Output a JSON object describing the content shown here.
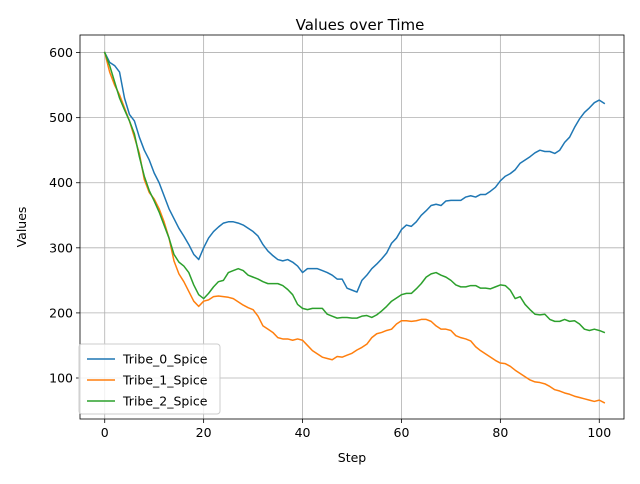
{
  "chart_data": {
    "type": "line",
    "title": "Values over Time",
    "xlabel": "Step",
    "ylabel": "Values",
    "xlim": [
      -5,
      105
    ],
    "ylim": [
      37,
      627
    ],
    "xticks": [
      0,
      20,
      40,
      60,
      80,
      100
    ],
    "yticks": [
      100,
      200,
      300,
      400,
      500,
      600
    ],
    "grid": true,
    "legend_position": "lower-left",
    "series": [
      {
        "name": "Tribe_0_Spice",
        "color": "#1f77b4",
        "points": [
          [
            0,
            600
          ],
          [
            1,
            585
          ],
          [
            2,
            580
          ],
          [
            3,
            570
          ],
          [
            4,
            530
          ],
          [
            5,
            505
          ],
          [
            6,
            495
          ],
          [
            7,
            470
          ],
          [
            8,
            450
          ],
          [
            9,
            435
          ],
          [
            10,
            415
          ],
          [
            11,
            400
          ],
          [
            12,
            380
          ],
          [
            13,
            360
          ],
          [
            14,
            345
          ],
          [
            15,
            330
          ],
          [
            16,
            318
          ],
          [
            17,
            305
          ],
          [
            18,
            290
          ],
          [
            19,
            282
          ],
          [
            20,
            300
          ],
          [
            21,
            315
          ],
          [
            22,
            325
          ],
          [
            23,
            332
          ],
          [
            24,
            338
          ],
          [
            25,
            340
          ],
          [
            26,
            340
          ],
          [
            27,
            338
          ],
          [
            28,
            335
          ],
          [
            29,
            330
          ],
          [
            30,
            325
          ],
          [
            31,
            318
          ],
          [
            32,
            305
          ],
          [
            33,
            295
          ],
          [
            34,
            288
          ],
          [
            35,
            282
          ],
          [
            36,
            280
          ],
          [
            37,
            282
          ],
          [
            38,
            278
          ],
          [
            39,
            272
          ],
          [
            40,
            262
          ],
          [
            41,
            268
          ],
          [
            42,
            268
          ],
          [
            43,
            268
          ],
          [
            44,
            265
          ],
          [
            45,
            262
          ],
          [
            46,
            258
          ],
          [
            47,
            252
          ],
          [
            48,
            252
          ],
          [
            49,
            238
          ],
          [
            50,
            235
          ],
          [
            51,
            232
          ],
          [
            52,
            250
          ],
          [
            53,
            258
          ],
          [
            54,
            268
          ],
          [
            55,
            275
          ],
          [
            56,
            283
          ],
          [
            57,
            292
          ],
          [
            58,
            307
          ],
          [
            59,
            315
          ],
          [
            60,
            328
          ],
          [
            61,
            335
          ],
          [
            62,
            333
          ],
          [
            63,
            340
          ],
          [
            64,
            350
          ],
          [
            65,
            357
          ],
          [
            66,
            365
          ],
          [
            67,
            367
          ],
          [
            68,
            365
          ],
          [
            69,
            372
          ],
          [
            70,
            373
          ],
          [
            71,
            373
          ],
          [
            72,
            373
          ],
          [
            73,
            378
          ],
          [
            74,
            380
          ],
          [
            75,
            378
          ],
          [
            76,
            382
          ],
          [
            77,
            382
          ],
          [
            78,
            387
          ],
          [
            79,
            393
          ],
          [
            80,
            403
          ],
          [
            81,
            410
          ],
          [
            82,
            414
          ],
          [
            83,
            420
          ],
          [
            84,
            430
          ],
          [
            85,
            435
          ],
          [
            86,
            440
          ],
          [
            87,
            446
          ],
          [
            88,
            450
          ],
          [
            89,
            448
          ],
          [
            90,
            448
          ],
          [
            91,
            445
          ],
          [
            92,
            450
          ],
          [
            93,
            462
          ],
          [
            94,
            470
          ],
          [
            95,
            485
          ],
          [
            96,
            498
          ],
          [
            97,
            508
          ],
          [
            98,
            515
          ],
          [
            99,
            523
          ],
          [
            100,
            527
          ],
          [
            101,
            522
          ]
        ]
      },
      {
        "name": "Tribe_1_Spice",
        "color": "#ff7f0e",
        "points": [
          [
            0,
            600
          ],
          [
            1,
            570
          ],
          [
            2,
            550
          ],
          [
            3,
            535
          ],
          [
            4,
            515
          ],
          [
            5,
            495
          ],
          [
            6,
            470
          ],
          [
            7,
            445
          ],
          [
            8,
            405
          ],
          [
            9,
            385
          ],
          [
            10,
            375
          ],
          [
            11,
            360
          ],
          [
            12,
            340
          ],
          [
            13,
            315
          ],
          [
            14,
            280
          ],
          [
            15,
            260
          ],
          [
            16,
            248
          ],
          [
            17,
            233
          ],
          [
            18,
            218
          ],
          [
            19,
            210
          ],
          [
            20,
            218
          ],
          [
            21,
            220
          ],
          [
            22,
            225
          ],
          [
            23,
            226
          ],
          [
            24,
            225
          ],
          [
            25,
            224
          ],
          [
            26,
            222
          ],
          [
            27,
            217
          ],
          [
            28,
            212
          ],
          [
            29,
            208
          ],
          [
            30,
            205
          ],
          [
            31,
            195
          ],
          [
            32,
            180
          ],
          [
            33,
            175
          ],
          [
            34,
            170
          ],
          [
            35,
            162
          ],
          [
            36,
            160
          ],
          [
            37,
            160
          ],
          [
            38,
            158
          ],
          [
            39,
            160
          ],
          [
            40,
            158
          ],
          [
            41,
            150
          ],
          [
            42,
            142
          ],
          [
            43,
            137
          ],
          [
            44,
            132
          ],
          [
            45,
            130
          ],
          [
            46,
            128
          ],
          [
            47,
            133
          ],
          [
            48,
            132
          ],
          [
            49,
            135
          ],
          [
            50,
            138
          ],
          [
            51,
            143
          ],
          [
            52,
            147
          ],
          [
            53,
            152
          ],
          [
            54,
            162
          ],
          [
            55,
            168
          ],
          [
            56,
            170
          ],
          [
            57,
            173
          ],
          [
            58,
            175
          ],
          [
            59,
            183
          ],
          [
            60,
            188
          ],
          [
            61,
            188
          ],
          [
            62,
            187
          ],
          [
            63,
            188
          ],
          [
            64,
            190
          ],
          [
            65,
            190
          ],
          [
            66,
            187
          ],
          [
            67,
            180
          ],
          [
            68,
            175
          ],
          [
            69,
            175
          ],
          [
            70,
            173
          ],
          [
            71,
            165
          ],
          [
            72,
            162
          ],
          [
            73,
            160
          ],
          [
            74,
            157
          ],
          [
            75,
            148
          ],
          [
            76,
            142
          ],
          [
            77,
            137
          ],
          [
            78,
            132
          ],
          [
            79,
            127
          ],
          [
            80,
            123
          ],
          [
            81,
            122
          ],
          [
            82,
            118
          ],
          [
            83,
            112
          ],
          [
            84,
            107
          ],
          [
            85,
            102
          ],
          [
            86,
            97
          ],
          [
            87,
            94
          ],
          [
            88,
            93
          ],
          [
            89,
            91
          ],
          [
            90,
            87
          ],
          [
            91,
            82
          ],
          [
            92,
            80
          ],
          [
            93,
            77
          ],
          [
            94,
            75
          ],
          [
            95,
            72
          ],
          [
            96,
            70
          ],
          [
            97,
            68
          ],
          [
            98,
            66
          ],
          [
            99,
            64
          ],
          [
            100,
            66
          ],
          [
            101,
            62
          ]
        ]
      },
      {
        "name": "Tribe_2_Spice",
        "color": "#2ca02c",
        "points": [
          [
            0,
            600
          ],
          [
            1,
            580
          ],
          [
            2,
            555
          ],
          [
            3,
            530
          ],
          [
            4,
            512
          ],
          [
            5,
            495
          ],
          [
            6,
            475
          ],
          [
            7,
            440
          ],
          [
            8,
            410
          ],
          [
            9,
            388
          ],
          [
            10,
            372
          ],
          [
            11,
            355
          ],
          [
            12,
            335
          ],
          [
            13,
            315
          ],
          [
            14,
            290
          ],
          [
            15,
            278
          ],
          [
            16,
            272
          ],
          [
            17,
            262
          ],
          [
            18,
            243
          ],
          [
            19,
            228
          ],
          [
            20,
            222
          ],
          [
            21,
            230
          ],
          [
            22,
            240
          ],
          [
            23,
            248
          ],
          [
            24,
            250
          ],
          [
            25,
            262
          ],
          [
            26,
            265
          ],
          [
            27,
            268
          ],
          [
            28,
            265
          ],
          [
            29,
            258
          ],
          [
            30,
            255
          ],
          [
            31,
            252
          ],
          [
            32,
            248
          ],
          [
            33,
            245
          ],
          [
            34,
            245
          ],
          [
            35,
            245
          ],
          [
            36,
            242
          ],
          [
            37,
            236
          ],
          [
            38,
            228
          ],
          [
            39,
            213
          ],
          [
            40,
            207
          ],
          [
            41,
            205
          ],
          [
            42,
            207
          ],
          [
            43,
            207
          ],
          [
            44,
            207
          ],
          [
            45,
            198
          ],
          [
            46,
            195
          ],
          [
            47,
            192
          ],
          [
            48,
            193
          ],
          [
            49,
            193
          ],
          [
            50,
            192
          ],
          [
            51,
            192
          ],
          [
            52,
            195
          ],
          [
            53,
            196
          ],
          [
            54,
            193
          ],
          [
            55,
            197
          ],
          [
            56,
            203
          ],
          [
            57,
            210
          ],
          [
            58,
            218
          ],
          [
            59,
            223
          ],
          [
            60,
            228
          ],
          [
            61,
            230
          ],
          [
            62,
            230
          ],
          [
            63,
            237
          ],
          [
            64,
            245
          ],
          [
            65,
            255
          ],
          [
            66,
            260
          ],
          [
            67,
            262
          ],
          [
            68,
            258
          ],
          [
            69,
            255
          ],
          [
            70,
            250
          ],
          [
            71,
            243
          ],
          [
            72,
            240
          ],
          [
            73,
            240
          ],
          [
            74,
            242
          ],
          [
            75,
            242
          ],
          [
            76,
            238
          ],
          [
            77,
            238
          ],
          [
            78,
            237
          ],
          [
            79,
            240
          ],
          [
            80,
            243
          ],
          [
            81,
            242
          ],
          [
            82,
            235
          ],
          [
            83,
            222
          ],
          [
            84,
            225
          ],
          [
            85,
            213
          ],
          [
            86,
            205
          ],
          [
            87,
            198
          ],
          [
            88,
            197
          ],
          [
            89,
            198
          ],
          [
            90,
            190
          ],
          [
            91,
            187
          ],
          [
            92,
            187
          ],
          [
            93,
            190
          ],
          [
            94,
            187
          ],
          [
            95,
            188
          ],
          [
            96,
            183
          ],
          [
            97,
            175
          ],
          [
            98,
            173
          ],
          [
            99,
            175
          ],
          [
            100,
            173
          ],
          [
            101,
            170
          ]
        ]
      }
    ]
  }
}
